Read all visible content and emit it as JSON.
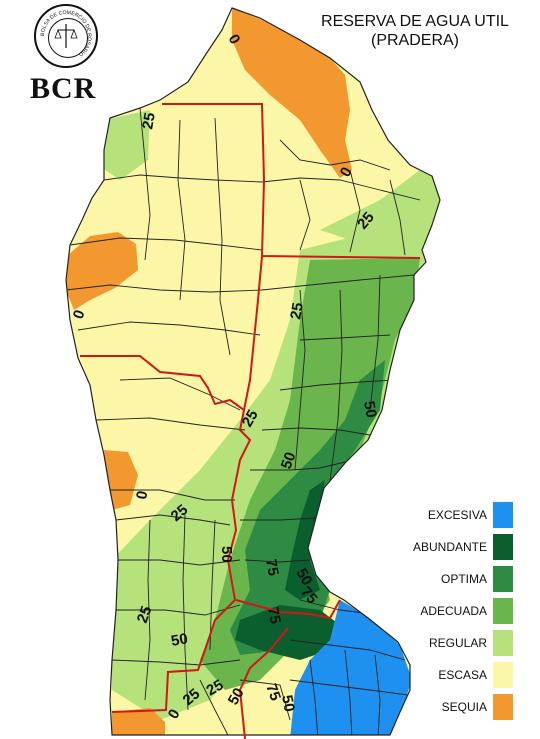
{
  "header": {
    "logo_text": "BCR",
    "logo_seal_text": "BOLSA DE COMERCIO DE ROSARIO",
    "title_line1": "RESERVA DE AGUA UTIL",
    "title_line2": "(PRADERA)"
  },
  "legend": [
    {
      "label": "EXCESIVA",
      "color": "#1e90f0"
    },
    {
      "label": "ABUNDANTE",
      "color": "#0b5e2e"
    },
    {
      "label": "OPTIMA",
      "color": "#2e8b43"
    },
    {
      "label": "ADECUADA",
      "color": "#6ab54c"
    },
    {
      "label": "REGULAR",
      "color": "#b5e27a"
    },
    {
      "label": "ESCASA",
      "color": "#fbf7a6"
    },
    {
      "label": "SEQUIA",
      "color": "#f3972f"
    }
  ],
  "contour_labels": [
    "0",
    "25",
    "0",
    "25",
    "0",
    "25",
    "25",
    "50",
    "50",
    "0",
    "25",
    "50",
    "75",
    "50",
    "25",
    "50",
    "75",
    "25",
    "0",
    "25",
    "50",
    "75",
    "50",
    "75"
  ],
  "colors": {
    "province_border": "#d01818",
    "department_border": "#222222",
    "background": "#ffffff"
  }
}
